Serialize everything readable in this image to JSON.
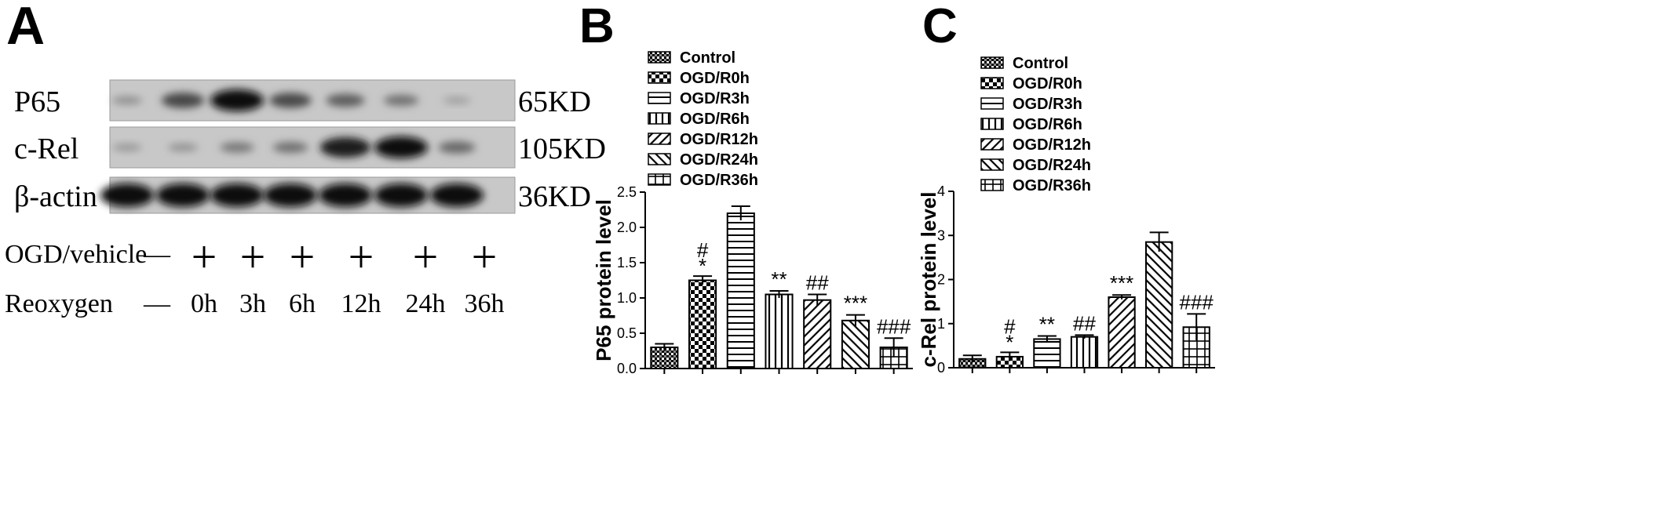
{
  "panel_a": {
    "letter": "A",
    "blots": [
      {
        "label": "P65",
        "size": "65KD",
        "intensities": [
          0.18,
          0.62,
          1.0,
          0.6,
          0.48,
          0.36,
          0.1
        ]
      },
      {
        "label": "c-Rel",
        "size": "105KD",
        "intensities": [
          0.14,
          0.17,
          0.32,
          0.36,
          0.9,
          1.0,
          0.42
        ]
      },
      {
        "label": "β-actin",
        "size": "36KD",
        "intensities": [
          1.0,
          1.0,
          1.0,
          1.0,
          1.0,
          1.0,
          1.0
        ]
      }
    ],
    "conditions": [
      {
        "label": "OGD/vehicle",
        "values": [
          "—",
          "+",
          "+",
          "+",
          "+",
          "+",
          "+"
        ]
      },
      {
        "label": "Reoxygen",
        "values": [
          "—",
          "0h",
          "3h",
          "6h",
          "12h",
          "24h",
          "36h"
        ]
      }
    ]
  },
  "legend": [
    "Control",
    "OGD/R0h",
    "OGD/R3h",
    "OGD/R6h",
    "OGD/R12h",
    "OGD/R24h",
    "OGD/R36h"
  ],
  "chart_data": [
    {
      "panel": "B",
      "type": "bar",
      "ylabel": "P65 protein level",
      "ylim": [
        0,
        2.5
      ],
      "yticks": [
        "0.0",
        "0.5",
        "1.0",
        "1.5",
        "2.0",
        "2.5"
      ],
      "categories": [
        "Control",
        "OGD/R0h",
        "OGD/R3h",
        "OGD/R6h",
        "OGD/R12h",
        "OGD/R24h",
        "OGD/R36h"
      ],
      "values": [
        0.3,
        1.25,
        2.2,
        1.05,
        0.97,
        0.68,
        0.3
      ],
      "errors": [
        0.05,
        0.06,
        0.1,
        0.05,
        0.08,
        0.08,
        0.13
      ],
      "annotations": [
        "",
        "#\n*",
        "",
        "**",
        "##",
        "***",
        "###"
      ],
      "legend_position": "top"
    },
    {
      "panel": "C",
      "type": "bar",
      "ylabel": "c-Rel protein level",
      "ylim": [
        0,
        4
      ],
      "yticks": [
        "0",
        "1",
        "2",
        "3",
        "4"
      ],
      "categories": [
        "Control",
        "OGD/R0h",
        "OGD/R3h",
        "OGD/R6h",
        "OGD/R12h",
        "OGD/R24h",
        "OGD/R36h"
      ],
      "values": [
        0.2,
        0.25,
        0.65,
        0.7,
        1.6,
        2.85,
        0.92
      ],
      "errors": [
        0.08,
        0.1,
        0.07,
        0.04,
        0.05,
        0.22,
        0.3
      ],
      "annotations": [
        "",
        "#\n*",
        "**",
        "##",
        "***",
        "",
        "###"
      ],
      "legend_position": "top"
    }
  ]
}
